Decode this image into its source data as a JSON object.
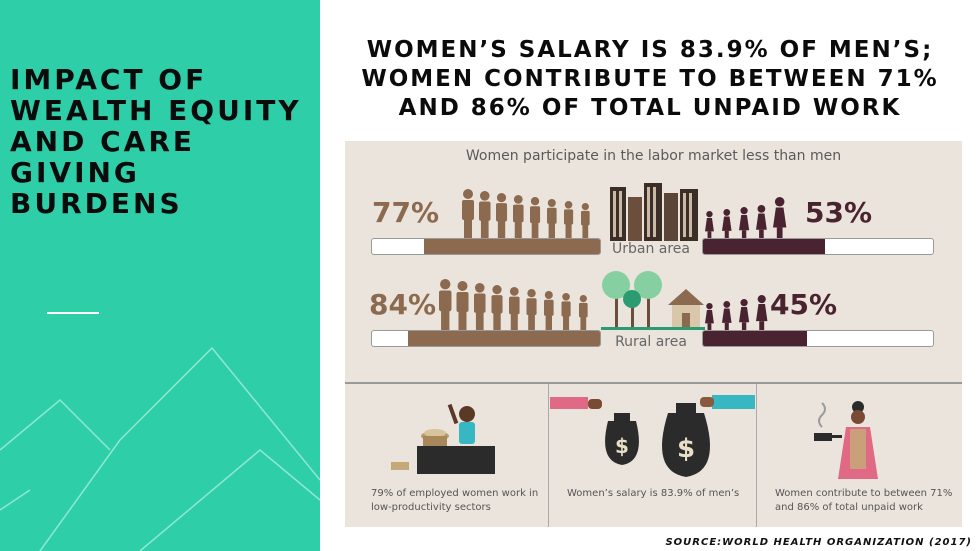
{
  "left_panel": {
    "title": "IMPACT OF WEALTH EQUITY AND CARE GIVING BURDENS",
    "background_color": "#2ecfa8"
  },
  "headline": "WOMEN’S SALARY IS 83.9% OF MEN’S; WOMEN CONTRIBUTE TO BETWEEN 71% AND 86% OF TOTAL UNPAID WORK",
  "infographic": {
    "title": "Women participate in the labor market less than men",
    "urban": {
      "label": "Urban area",
      "men_pct_label": "77%",
      "women_pct_label": "53%",
      "men_pct": 77,
      "women_pct": 53
    },
    "rural": {
      "label": "Rural area",
      "men_pct_label": "84%",
      "women_pct_label": "45%",
      "men_pct": 84,
      "women_pct": 45
    },
    "captions": {
      "employment": "79% of employed women work in low-productivity sectors",
      "salary": "Women’s salary is 83.9% of men’s",
      "unpaid": "Women contribute to between 71% and 86% of total unpaid work"
    },
    "colors": {
      "men": "#8c6a4f",
      "women": "#4a2330",
      "card_bg": "#ebe4dc"
    },
    "icons": [
      "men-figure-icon",
      "women-figure-icon",
      "city-buildings-icon",
      "trees-icon",
      "house-icon",
      "vendor-icon",
      "money-bag-icon",
      "cooking-woman-icon"
    ]
  },
  "source": "SOURCE:WORLD HEALTH ORGANIZATION (2017)"
}
